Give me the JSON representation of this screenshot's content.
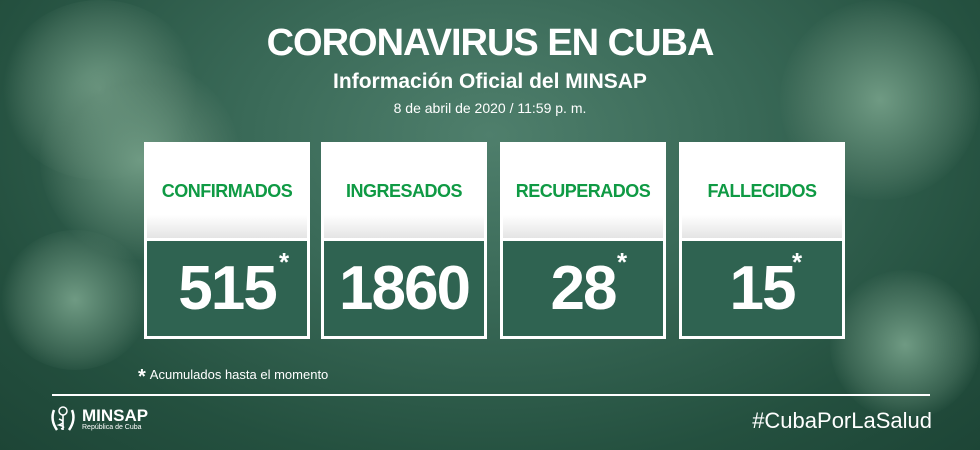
{
  "header": {
    "title": "CORONAVIRUS EN CUBA",
    "subtitle": "Información Oficial del MINSAP",
    "date": "8 de abril de 2020 / 11:59 p. m."
  },
  "cards": [
    {
      "label": "CONFIRMADOS",
      "value": "515",
      "asterisk": "*"
    },
    {
      "label": "INGRESADOS",
      "value": "1860",
      "asterisk": ""
    },
    {
      "label": "RECUPERADOS",
      "value": "28",
      "asterisk": "*"
    },
    {
      "label": "FALLECIDOS",
      "value": "15",
      "asterisk": "*"
    }
  ],
  "footnote": {
    "mark": "*",
    "text": "Acumulados hasta el momento"
  },
  "footer": {
    "logo_name": "MINSAP",
    "logo_sub": "República de Cuba",
    "hashtag": "#CubaPorLaSalud"
  },
  "colors": {
    "label_green": "#0f9a44",
    "value_bg": "#2f6351",
    "background": "#2f5e4d"
  }
}
